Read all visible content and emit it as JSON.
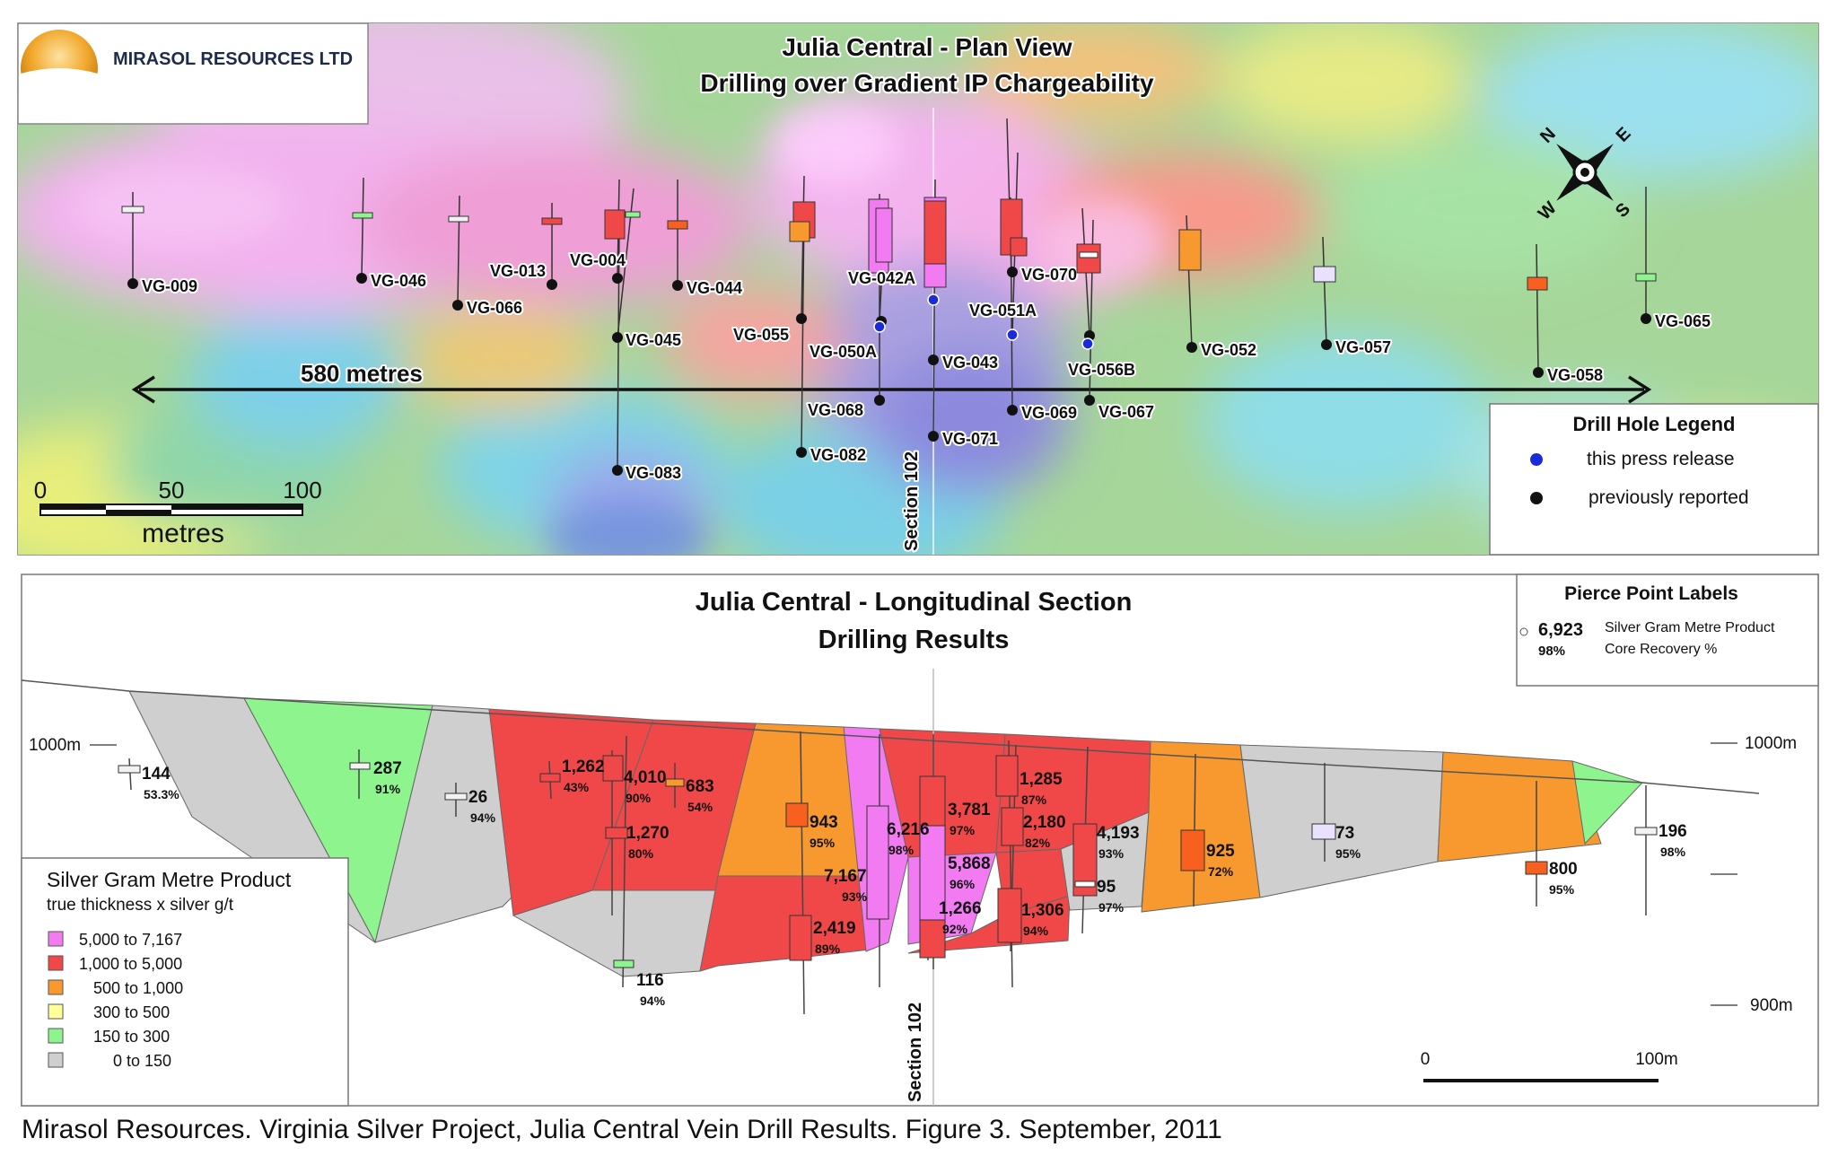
{
  "company": {
    "name": "MIRASOL RESOURCES LTD"
  },
  "plan": {
    "title": "Julia Central - Plan View",
    "subtitle": "Drilling over Gradient IP Chargeability",
    "span_label": "580 metres",
    "section_label": "Section 102",
    "scale": {
      "ticks": [
        "0",
        "50",
        "100"
      ],
      "unit": "metres"
    },
    "compass": [
      "N",
      "E",
      "S",
      "W"
    ],
    "legend": {
      "title": "Drill Hole Legend",
      "items": [
        {
          "label": "this press release",
          "color": "#1a2bdc"
        },
        {
          "label": "previously reported",
          "color": "#111111"
        }
      ]
    },
    "holes": [
      {
        "id": "VG-009",
        "status": "previous"
      },
      {
        "id": "VG-046",
        "status": "previous"
      },
      {
        "id": "VG-066",
        "status": "previous"
      },
      {
        "id": "VG-013",
        "status": "previous"
      },
      {
        "id": "VG-004",
        "status": "previous"
      },
      {
        "id": "VG-045",
        "status": "previous"
      },
      {
        "id": "VG-083",
        "status": "previous"
      },
      {
        "id": "VG-044",
        "status": "previous"
      },
      {
        "id": "VG-055",
        "status": "previous"
      },
      {
        "id": "VG-082",
        "status": "previous"
      },
      {
        "id": "VG-042A",
        "status": "previous"
      },
      {
        "id": "VG-050A",
        "status": "this release"
      },
      {
        "id": "VG-068",
        "status": "previous"
      },
      {
        "id": "VG-043",
        "status": "previous"
      },
      {
        "id": "VG-071",
        "status": "previous"
      },
      {
        "id": "VG-051A",
        "status": "this release"
      },
      {
        "id": "VG-070",
        "status": "previous"
      },
      {
        "id": "VG-069",
        "status": "previous"
      },
      {
        "id": "VG-056B",
        "status": "this release"
      },
      {
        "id": "VG-067",
        "status": "previous"
      },
      {
        "id": "VG-052",
        "status": "previous"
      },
      {
        "id": "VG-057",
        "status": "previous"
      },
      {
        "id": "VG-058",
        "status": "previous"
      },
      {
        "id": "VG-065",
        "status": "previous"
      }
    ]
  },
  "section": {
    "title": "Julia Central - Longitudinal Section",
    "subtitle": "Drilling Results",
    "section_label": "Section 102",
    "elevations": [
      "1000m",
      "900m"
    ],
    "scale": [
      "0",
      "100m"
    ],
    "pierce_legend": {
      "title": "Pierce Point Labels",
      "example_value": "6,923",
      "example_recovery": "98%",
      "value_desc": "Silver Gram Metre Product",
      "recovery_desc": "Core Recovery %"
    },
    "grade_legend": {
      "title": "Silver Gram Metre Product",
      "subtitle": "true thickness x silver g/t",
      "classes": [
        {
          "label": "5,000 to 7,167",
          "color": "#f27bf2"
        },
        {
          "label": "1,000 to 5,000",
          "color": "#f04848"
        },
        {
          "label": "500 to 1,000",
          "color": "#f7992f"
        },
        {
          "label": "300 to   500",
          "color": "#ffff99"
        },
        {
          "label": "150 to   300",
          "color": "#8ef58e"
        },
        {
          "label": "0 to   150",
          "color": "#cfcfcf"
        }
      ]
    },
    "pierce_points": [
      {
        "value": "144",
        "recovery": "53.3%"
      },
      {
        "value": "287",
        "recovery": "91%"
      },
      {
        "value": "26",
        "recovery": "94%"
      },
      {
        "value": "1,262",
        "recovery": "43%"
      },
      {
        "value": "4,010",
        "recovery": "90%"
      },
      {
        "value": "1,270",
        "recovery": "80%"
      },
      {
        "value": "683",
        "recovery": "54%"
      },
      {
        "value": "116",
        "recovery": "94%"
      },
      {
        "value": "943",
        "recovery": "95%"
      },
      {
        "value": "2,419",
        "recovery": "89%"
      },
      {
        "value": "6,216",
        "recovery": "98%"
      },
      {
        "value": "7,167",
        "recovery": "93%"
      },
      {
        "value": "3,781",
        "recovery": "97%"
      },
      {
        "value": "5,868",
        "recovery": "96%"
      },
      {
        "value": "1,266",
        "recovery": "92%"
      },
      {
        "value": "1,285",
        "recovery": "87%"
      },
      {
        "value": "2,180",
        "recovery": "82%"
      },
      {
        "value": "1,306",
        "recovery": "94%"
      },
      {
        "value": "4,193",
        "recovery": "93%"
      },
      {
        "value": "95",
        "recovery": "97%"
      },
      {
        "value": "925",
        "recovery": "72%"
      },
      {
        "value": "73",
        "recovery": "95%"
      },
      {
        "value": "800",
        "recovery": "95%"
      },
      {
        "value": "196",
        "recovery": "98%"
      }
    ]
  },
  "caption": "Mirasol Resources. Virginia Silver Project, Julia Central Vein Drill Results. Figure 3. September, 2011"
}
